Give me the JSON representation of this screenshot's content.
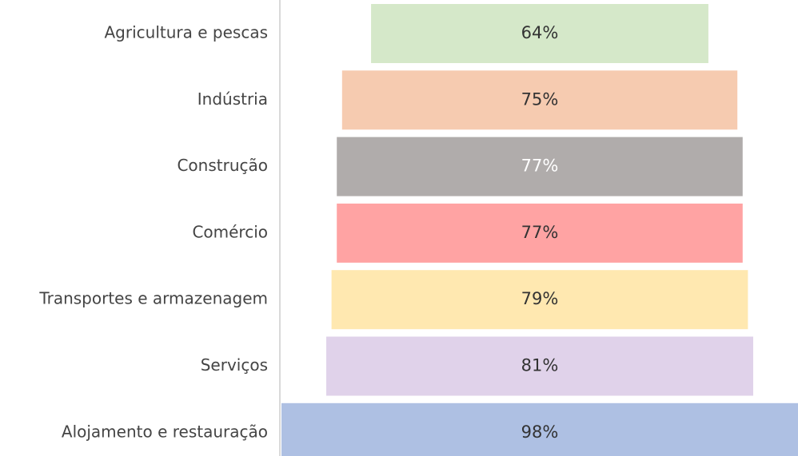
{
  "chart_data": {
    "type": "funnel",
    "categories": [
      "Agricultura e pescas",
      "Indústria",
      "Construção",
      "Comércio",
      "Transportes e armazenagem",
      "Serviços",
      "Alojamento e restauração"
    ],
    "values": [
      64,
      75,
      77,
      77,
      79,
      81,
      98
    ],
    "value_labels": [
      "64%",
      "75%",
      "77%",
      "77%",
      "79%",
      "81%",
      "98%"
    ],
    "colors": [
      "#d5e8c9",
      "#f6cbb0",
      "#b0acab",
      "#ffa3a3",
      "#ffe8b0",
      "#e0d2ea",
      "#aec0e3"
    ],
    "value_label_colors": [
      "#333333",
      "#333333",
      "#ffffff",
      "#333333",
      "#333333",
      "#333333",
      "#333333"
    ]
  }
}
